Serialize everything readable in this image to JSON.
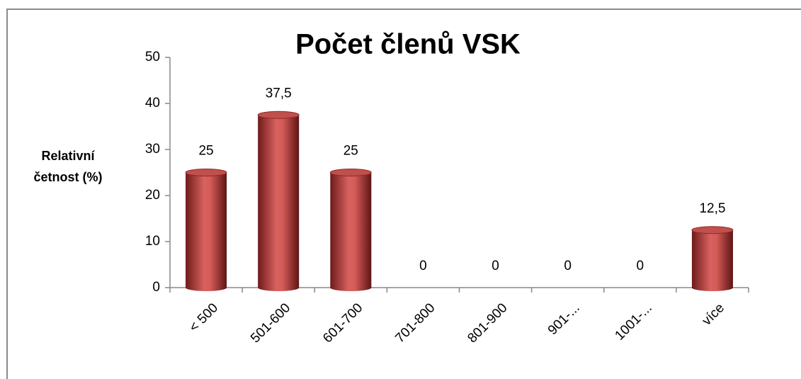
{
  "chart_data": {
    "type": "bar",
    "title": "Počet členů VSK",
    "y_label": "Relativní četnost (%)",
    "categories": [
      "< 500",
      "501-600",
      "601-700",
      "701-800",
      "801-900",
      "901-...",
      "1001-...",
      "více"
    ],
    "values": [
      25,
      37.5,
      25,
      0,
      0,
      0,
      0,
      12.5
    ],
    "value_labels": [
      "25",
      "37,5",
      "25",
      "0",
      "0",
      "0",
      "0",
      "12,5"
    ],
    "color": "#c0504d",
    "ylim": [
      0,
      50
    ],
    "yticks": [
      0,
      10,
      20,
      30,
      40,
      50
    ],
    "grid": false
  }
}
